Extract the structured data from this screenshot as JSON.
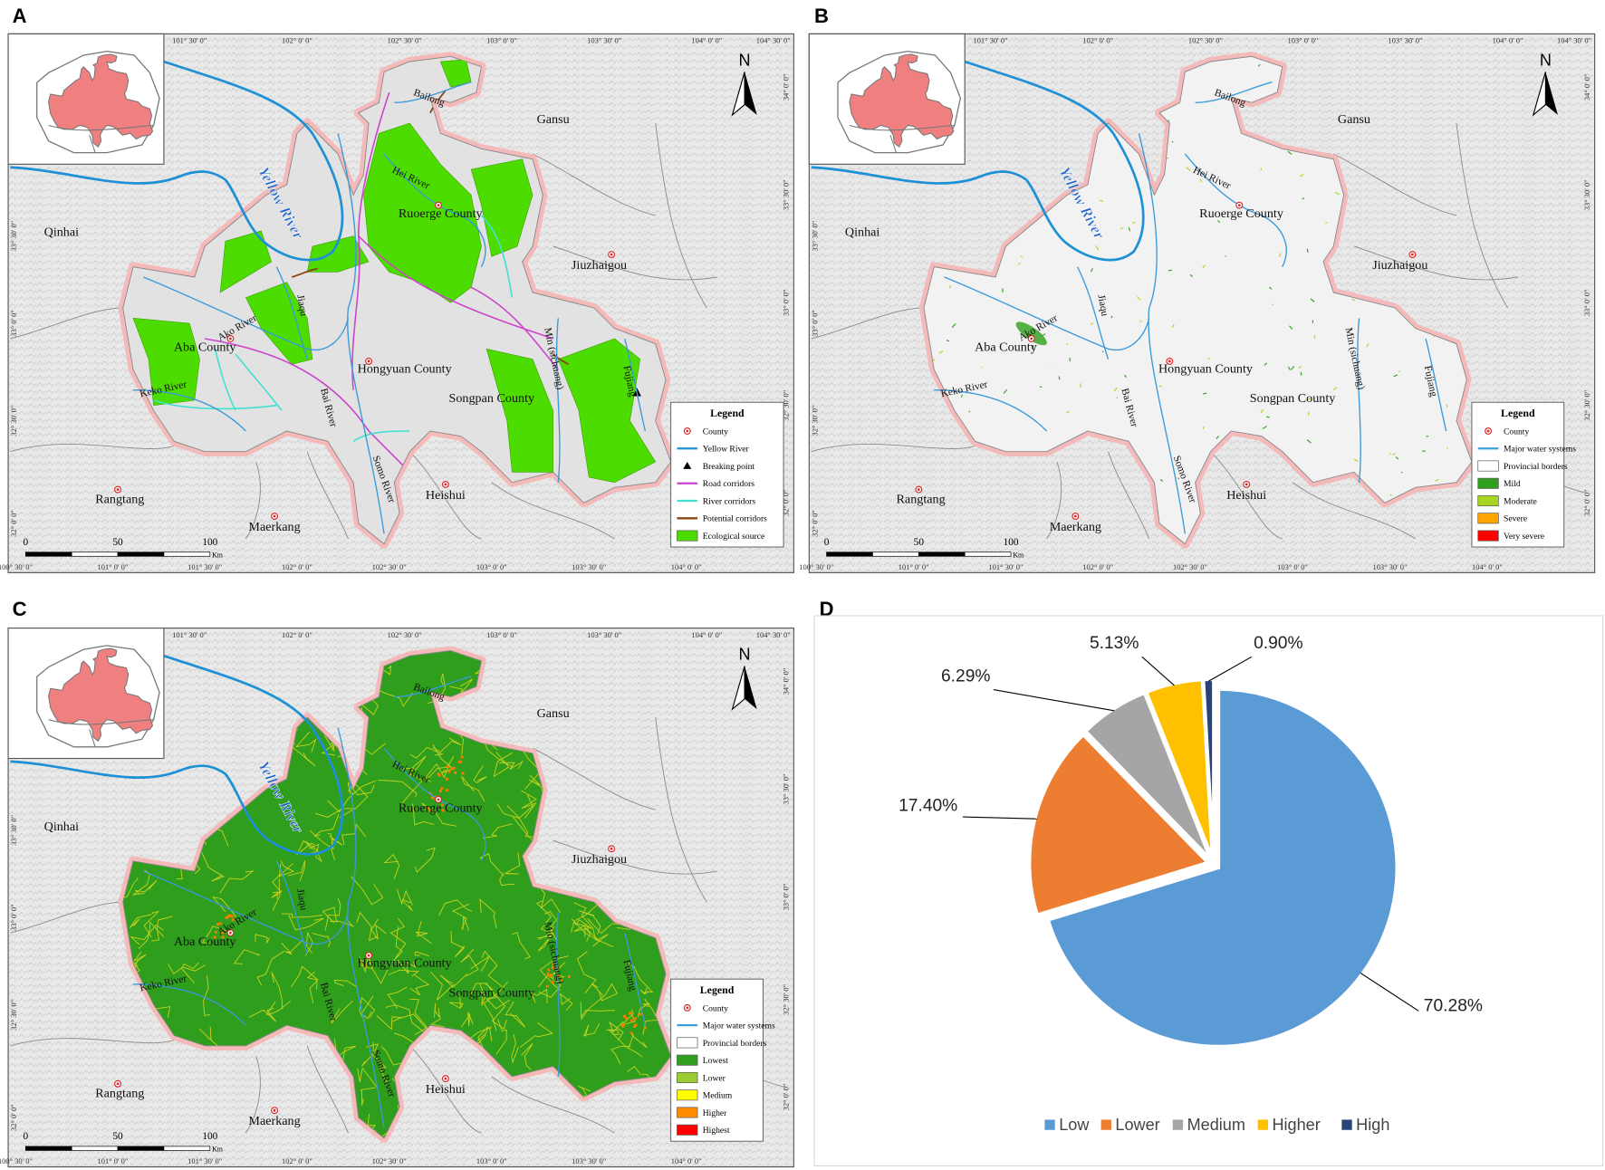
{
  "panels": [
    {
      "label": "A",
      "legend_title": "Legend",
      "legend": [
        "County",
        "Yellow River",
        "Breaking point",
        "Road corridors",
        "River corridors",
        "Potential corridors",
        "Ecological source"
      ]
    },
    {
      "label": "B",
      "legend_title": "Legend",
      "legend": [
        "County",
        "Major water systems",
        "Provincial borders",
        "Mild",
        "Moderate",
        "Severe",
        "Very severe"
      ]
    },
    {
      "label": "C",
      "legend_title": "Legend",
      "legend": [
        "County",
        "Major water systems",
        "Provincial borders",
        "Lowest",
        "Lower",
        "Medium",
        "Higher",
        "Highest"
      ]
    },
    {
      "label": "D"
    }
  ],
  "map_common": {
    "places": [
      "Qinhai",
      "Gansu",
      "Jiuzhaigou",
      "Rangtang",
      "Maerkang",
      "Heishui",
      "Aba County",
      "Hongyuan County",
      "Ruoerge County",
      "Songpan County"
    ],
    "rivers": [
      "Yellow River",
      "Bailong",
      "Hei River",
      "Ako River",
      "Keko River",
      "Jiaqu",
      "Bai River",
      "Somo River",
      "Min (sichuang)",
      "Fujiang"
    ],
    "north": "N",
    "scale_labels": [
      "0",
      "50",
      "100"
    ],
    "scale_unit": "Km",
    "lon_top": [
      "101° 30' 0\"",
      "102° 0' 0\"",
      "102° 30' 0\"",
      "103° 0' 0\"",
      "103° 30' 0\"",
      "104° 0' 0\"",
      "104° 30' 0\""
    ],
    "lon_bottom": [
      "100° 30' 0\"",
      "101° 0' 0\"",
      "101° 30' 0\"",
      "102° 0' 0\"",
      "102° 30' 0\"",
      "103° 0' 0\"",
      "103° 30' 0\"",
      "104° 0' 0\""
    ],
    "lat_left": [
      "33° 30' 0\"",
      "33° 0' 0\"",
      "32° 30' 0\"",
      "32° 0' 0\""
    ],
    "lat_right": [
      "34° 0' 0\"",
      "33° 30' 0\"",
      "33° 0' 0\"",
      "32° 30' 0\"",
      "32° 0' 0\""
    ]
  },
  "chart_data": {
    "type": "pie",
    "categories": [
      "Low",
      "Lower",
      "Medium",
      "Higher",
      "High"
    ],
    "values": [
      70.28,
      17.4,
      6.29,
      5.13,
      0.9
    ],
    "value_labels": [
      "70.28%",
      "17.40%",
      "6.29%",
      "5.13%",
      "0.90%"
    ],
    "colors": [
      "#5b9bd5",
      "#ed7d31",
      "#a5a5a5",
      "#ffc000",
      "#264478"
    ],
    "legend": "bottom"
  }
}
